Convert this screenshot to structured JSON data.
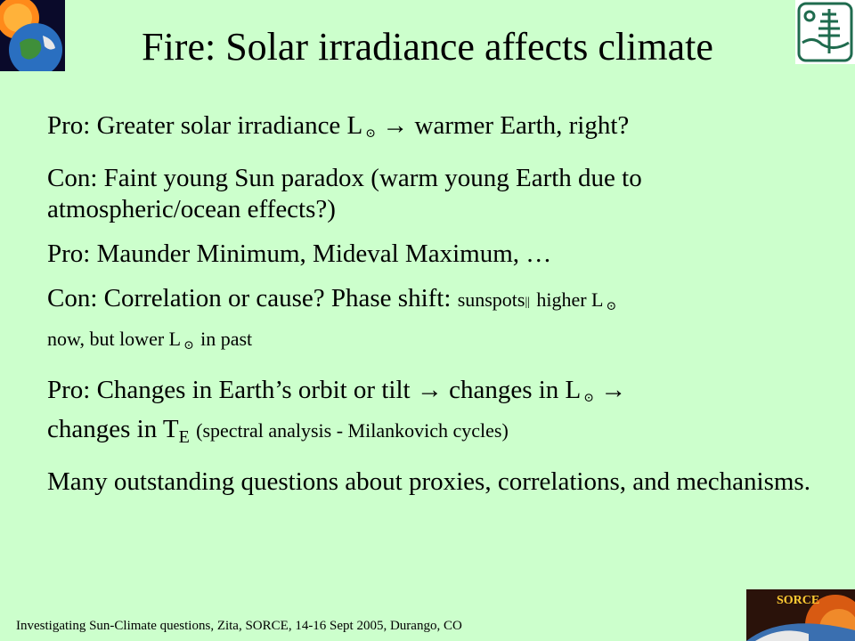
{
  "title": "Fire:  Solar irradiance affects climate",
  "symbols": {
    "sun": "⊙",
    "arrow": "→",
    "parallel": "||"
  },
  "bullets": {
    "b1": {
      "prefix": "Pro: Greater solar irradiance L",
      "suffix": "warmer Earth, right?"
    },
    "b2": {
      "text": "Con: Faint young Sun paradox (warm young Earth due to atmospheric/ocean effects?)"
    },
    "b3": {
      "text": "Pro: Maunder Minimum, Mideval Maximum, …"
    },
    "b4": {
      "main": "Con: Correlation or cause?  Phase shift: ",
      "small1": "sunspots",
      "small2": "higher L",
      "small3": "now, but lower L",
      "small4": "in past"
    },
    "b5": {
      "part1": "Pro: Changes in Earth’s orbit or tilt",
      "part2": "changes in L",
      "part3": "changes in T",
      "sub": "E",
      "paren": "(spectral analysis - Milankovich cycles)"
    },
    "b6": {
      "text": "Many outstanding questions about proxies, correlations, and mechanisms."
    }
  },
  "logos": {
    "sorce_label": "SORCE"
  },
  "footer": "Investigating Sun-Climate questions, Zita, SORCE, 14-16 Sept 2005, Durango, CO"
}
